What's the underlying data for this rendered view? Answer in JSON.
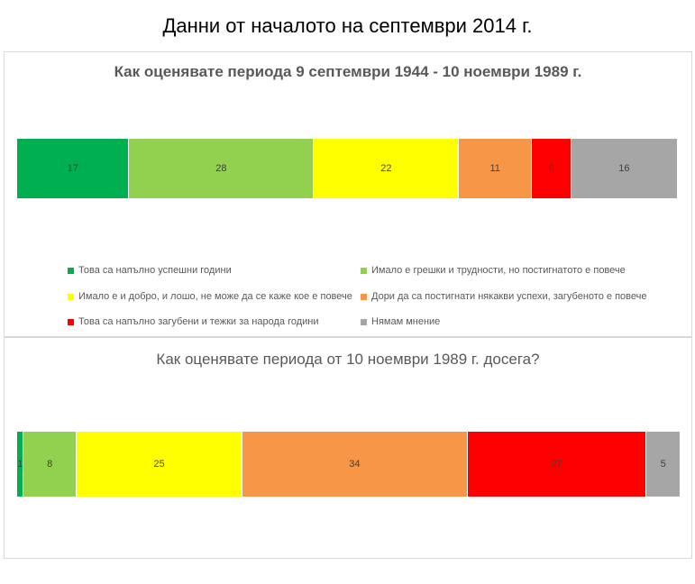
{
  "page_title": "Данни от началото на септември 2014 г.",
  "chart_data": [
    {
      "type": "bar",
      "orientation": "horizontal-stacked-100",
      "title": "Как оценявате периода 9 септември 1944 - 10 ноември 1989 г.",
      "series": [
        {
          "name": "Това са напълно успешни години",
          "value": 17,
          "color": "#00B050"
        },
        {
          "name": "Имало е грешки и трудности, но постигнатото е повече",
          "value": 28,
          "color": "#92D050"
        },
        {
          "name": "Имало е и добро, и лошо, не може да се каже кое е повече",
          "value": 22,
          "color": "#FFFF00"
        },
        {
          "name": "Дори да са постигнати някакви успехи, загубеното е повече",
          "value": 11,
          "color": "#F79646"
        },
        {
          "name": "Това са напълно загубени и тежки за народа години",
          "value": 6,
          "color": "#FF0000"
        },
        {
          "name": "Нямам мнение",
          "value": 16,
          "color": "#A6A6A6"
        }
      ],
      "legend_position": "bottom"
    },
    {
      "type": "bar",
      "orientation": "horizontal-stacked-100",
      "title": "Как оценявате периода от 10 ноември 1989 г. досега?",
      "series": [
        {
          "value": 1,
          "color": "#00B050"
        },
        {
          "value": 8,
          "color": "#92D050"
        },
        {
          "value": 25,
          "color": "#FFFF00"
        },
        {
          "value": 34,
          "color": "#F79646"
        },
        {
          "value": 27,
          "color": "#FF0000"
        },
        {
          "value": 5,
          "color": "#A6A6A6"
        }
      ]
    }
  ]
}
